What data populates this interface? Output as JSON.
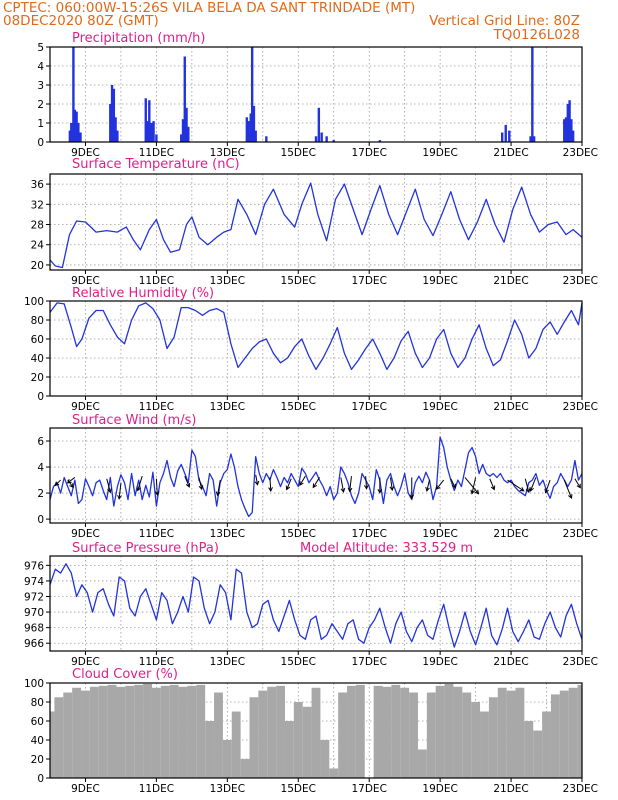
{
  "header": {
    "line1_left": "CPTEC:   060:00W-15:26S  VILA BELA DA SANT TRINDADE (MT)",
    "line2_left": "08DEC2020 80Z (GMT)",
    "line2_right": "Vertical Grid Line: 80Z",
    "line3_right": "TQ0126L028"
  },
  "x_axis": {
    "ticks": [
      "9DEC",
      "11DEC",
      "13DEC",
      "15DEC",
      "17DEC",
      "19DEC",
      "21DEC",
      "23DEC"
    ]
  },
  "colors": {
    "series": "#2233dd",
    "arrows": "#000000",
    "cloud": "#a8a8a8",
    "titles": "#e0208a",
    "header": "#e06a1a"
  },
  "chart_data": [
    {
      "type": "bar",
      "title": "Precipitation (mm/h)",
      "ylim": [
        0,
        5
      ],
      "yticks": [
        0,
        1,
        2,
        3,
        4,
        5
      ],
      "x": [
        8.56,
        8.6,
        8.66,
        8.7,
        8.75,
        8.8,
        8.86,
        9.7,
        9.75,
        9.8,
        9.85,
        9.9,
        10.7,
        10.75,
        10.8,
        10.86,
        10.92,
        11.0,
        11.7,
        11.75,
        11.8,
        11.85,
        11.9,
        13.55,
        13.6,
        13.66,
        13.7,
        13.75,
        13.8,
        14.1,
        15.5,
        15.58,
        15.66,
        15.8,
        16.0,
        17.3,
        20.75,
        20.85,
        20.95,
        21.55,
        21.6,
        21.65,
        22.5,
        22.55,
        22.6,
        22.65,
        22.7,
        22.75
      ],
      "values": [
        0.6,
        1.0,
        5.0,
        1.7,
        1.6,
        1.0,
        0.5,
        2.0,
        3.0,
        2.8,
        1.3,
        0.6,
        2.3,
        1.1,
        2.2,
        1.0,
        1.1,
        0.4,
        0.4,
        1.2,
        4.5,
        1.8,
        0.8,
        1.3,
        1.1,
        1.5,
        5.0,
        1.9,
        0.6,
        0.3,
        0.3,
        1.8,
        0.5,
        0.3,
        0.1,
        0.1,
        0.5,
        0.9,
        0.6,
        0.3,
        5.0,
        0.3,
        1.2,
        1.3,
        2.0,
        2.2,
        1.2,
        0.6
      ]
    },
    {
      "type": "line",
      "title": "Surface Temperature (nC)",
      "ylim": [
        19,
        38
      ],
      "yticks": [
        20,
        24,
        28,
        32,
        36
      ],
      "x": [
        8.0,
        8.15,
        8.35,
        8.55,
        8.75,
        9.0,
        9.3,
        9.6,
        9.9,
        10.15,
        10.35,
        10.55,
        10.8,
        11.0,
        11.2,
        11.4,
        11.65,
        11.85,
        12.0,
        12.2,
        12.45,
        12.7,
        12.9,
        13.1,
        13.3,
        13.55,
        13.8,
        14.05,
        14.3,
        14.6,
        14.9,
        15.1,
        15.35,
        15.55,
        15.8,
        16.05,
        16.3,
        16.55,
        16.8,
        17.05,
        17.3,
        17.55,
        17.8,
        18.05,
        18.3,
        18.55,
        18.8,
        19.05,
        19.3,
        19.55,
        19.8,
        20.05,
        20.3,
        20.55,
        20.8,
        21.05,
        21.3,
        21.55,
        21.8,
        22.05,
        22.3,
        22.55,
        22.75,
        23.0
      ],
      "values": [
        21.0,
        19.8,
        19.5,
        26.0,
        28.7,
        28.5,
        26.5,
        26.8,
        26.5,
        27.5,
        25.0,
        23.0,
        27.0,
        29.0,
        25.0,
        22.5,
        23.0,
        28.0,
        29.5,
        25.5,
        24.0,
        25.5,
        26.5,
        27.0,
        33.0,
        30.0,
        26.0,
        32.0,
        35.0,
        30.0,
        27.5,
        32.0,
        36.2,
        30.0,
        24.8,
        33.0,
        36.0,
        31.0,
        26.0,
        31.0,
        35.7,
        30.0,
        26.0,
        30.5,
        35.0,
        29.0,
        25.8,
        30.0,
        34.5,
        29.0,
        25.0,
        28.5,
        33.0,
        28.0,
        24.5,
        31.0,
        35.4,
        30.0,
        26.5,
        28.0,
        28.5,
        26.0,
        27.0,
        25.5
      ]
    },
    {
      "type": "line",
      "title": "Relative Humidity (%)",
      "ylim": [
        0,
        100
      ],
      "yticks": [
        0,
        20,
        40,
        60,
        80,
        100
      ],
      "x": [
        8.0,
        8.2,
        8.4,
        8.6,
        8.75,
        8.9,
        9.1,
        9.3,
        9.5,
        9.7,
        9.9,
        10.1,
        10.3,
        10.5,
        10.7,
        10.9,
        11.1,
        11.3,
        11.5,
        11.7,
        11.9,
        12.1,
        12.3,
        12.5,
        12.7,
        12.9,
        13.1,
        13.3,
        13.5,
        13.7,
        13.9,
        14.1,
        14.3,
        14.5,
        14.7,
        14.9,
        15.1,
        15.3,
        15.5,
        15.7,
        15.9,
        16.1,
        16.3,
        16.5,
        16.7,
        16.9,
        17.1,
        17.3,
        17.5,
        17.7,
        17.9,
        18.1,
        18.3,
        18.5,
        18.7,
        18.9,
        19.1,
        19.3,
        19.5,
        19.7,
        19.9,
        20.1,
        20.3,
        20.5,
        20.7,
        20.9,
        21.1,
        21.3,
        21.5,
        21.7,
        21.9,
        22.1,
        22.3,
        22.5,
        22.7,
        22.9,
        23.0
      ],
      "values": [
        88.0,
        98.0,
        97.0,
        72.0,
        52.0,
        60.0,
        82.0,
        90.0,
        90.0,
        75.0,
        62.0,
        55.0,
        80.0,
        95.0,
        98.0,
        92.0,
        80.0,
        50.0,
        62.0,
        93.0,
        93.0,
        90.0,
        85.0,
        90.0,
        92.0,
        88.0,
        55.0,
        30.0,
        40.0,
        50.0,
        57.0,
        60.0,
        45.0,
        35.0,
        40.0,
        52.0,
        60.0,
        42.0,
        28.0,
        40.0,
        55.0,
        72.0,
        45.0,
        28.0,
        38.0,
        50.0,
        60.0,
        45.0,
        28.0,
        40.0,
        58.0,
        68.0,
        45.0,
        30.0,
        40.0,
        60.0,
        70.0,
        45.0,
        30.0,
        40.0,
        60.0,
        75.0,
        50.0,
        32.0,
        38.0,
        58.0,
        80.0,
        65.0,
        40.0,
        50.0,
        70.0,
        78.0,
        65.0,
        78.0,
        90.0,
        75.0,
        98.0
      ]
    },
    {
      "type": "line",
      "title": "Surface Wind (m/s)",
      "ylim": [
        -0.3,
        7.0
      ],
      "yticks": [
        0,
        2,
        4,
        6
      ],
      "x": [
        8.0,
        8.1,
        8.2,
        8.3,
        8.4,
        8.5,
        8.6,
        8.7,
        8.8,
        8.9,
        9.0,
        9.1,
        9.2,
        9.3,
        9.4,
        9.5,
        9.6,
        9.7,
        9.8,
        9.9,
        10.0,
        10.1,
        10.2,
        10.3,
        10.4,
        10.5,
        10.6,
        10.7,
        10.8,
        10.9,
        11.0,
        11.1,
        11.2,
        11.3,
        11.4,
        11.5,
        11.6,
        11.7,
        11.8,
        11.9,
        12.0,
        12.1,
        12.2,
        12.3,
        12.4,
        12.5,
        12.6,
        12.7,
        12.8,
        12.9,
        13.0,
        13.1,
        13.2,
        13.3,
        13.4,
        13.5,
        13.6,
        13.7,
        13.8,
        13.9,
        14.0,
        14.1,
        14.2,
        14.3,
        14.4,
        14.5,
        14.6,
        14.7,
        14.8,
        14.9,
        15.0,
        15.1,
        15.2,
        15.3,
        15.4,
        15.5,
        15.6,
        15.7,
        15.8,
        15.9,
        16.0,
        16.1,
        16.2,
        16.3,
        16.4,
        16.5,
        16.6,
        16.7,
        16.8,
        16.9,
        17.0,
        17.1,
        17.2,
        17.3,
        17.4,
        17.5,
        17.6,
        17.7,
        17.8,
        17.9,
        18.0,
        18.1,
        18.2,
        18.3,
        18.4,
        18.5,
        18.6,
        18.7,
        18.8,
        18.9,
        19.0,
        19.1,
        19.2,
        19.3,
        19.4,
        19.5,
        19.6,
        19.7,
        19.8,
        19.9,
        20.0,
        20.1,
        20.2,
        20.3,
        20.4,
        20.5,
        20.6,
        20.7,
        20.8,
        20.9,
        21.0,
        21.1,
        21.2,
        21.3,
        21.4,
        21.5,
        21.6,
        21.7,
        21.8,
        21.9,
        22.0,
        22.1,
        22.2,
        22.3,
        22.4,
        22.5,
        22.6,
        22.7,
        22.8,
        22.9,
        23.0
      ],
      "values": [
        1.5,
        2.5,
        2.8,
        2.0,
        3.2,
        2.5,
        1.8,
        3.0,
        1.2,
        1.5,
        3.1,
        2.5,
        1.8,
        2.8,
        3.0,
        2.2,
        1.5,
        3.2,
        1.0,
        2.5,
        3.4,
        2.8,
        1.5,
        3.5,
        1.8,
        3.0,
        1.5,
        2.6,
        1.7,
        3.6,
        1.0,
        2.8,
        3.5,
        4.5,
        3.2,
        2.5,
        3.7,
        4.2,
        3.5,
        2.8,
        5.3,
        4.8,
        3.0,
        2.5,
        1.8,
        3.5,
        3.0,
        1.0,
        2.8,
        3.5,
        3.8,
        5.0,
        4.0,
        2.5,
        1.5,
        0.8,
        0.2,
        0.5,
        4.8,
        3.5,
        2.8,
        3.5,
        3.0,
        3.8,
        3.2,
        2.5,
        3.2,
        2.8,
        3.5,
        3.0,
        2.5,
        3.9,
        3.5,
        2.8,
        3.2,
        3.6,
        3.0,
        2.5,
        1.8,
        2.5,
        1.5,
        2.0,
        4.0,
        3.5,
        2.8,
        1.8,
        1.2,
        2.0,
        3.5,
        3.0,
        2.5,
        1.5,
        3.8,
        3.0,
        1.2,
        3.0,
        3.5,
        2.5,
        1.8,
        2.5,
        3.5,
        2.0,
        1.5,
        2.8,
        3.3,
        2.8,
        3.6,
        3.0,
        1.5,
        2.5,
        6.3,
        5.5,
        4.0,
        3.0,
        2.2,
        3.0,
        2.5,
        3.8,
        5.1,
        5.5,
        4.8,
        3.5,
        4.2,
        3.5,
        3.3,
        3.5,
        3.2,
        3.5,
        3.0,
        2.8,
        3.0,
        2.5,
        2.2,
        2.0,
        1.8,
        2.8,
        3.0,
        3.5,
        2.6,
        3.0,
        2.2,
        1.6,
        2.5,
        2.8,
        3.5,
        3.0,
        2.5,
        3.0,
        4.5,
        3.0,
        3.5
      ]
    },
    {
      "type": "line",
      "title": "Surface Pressure (hPa)",
      "annotation": "Model Altitude: 333.529  m",
      "ylim": [
        965.0,
        977.2
      ],
      "yticks": [
        966,
        968,
        970,
        972,
        974,
        976
      ],
      "x": [
        8.0,
        8.15,
        8.3,
        8.45,
        8.6,
        8.75,
        8.9,
        9.05,
        9.2,
        9.35,
        9.5,
        9.65,
        9.8,
        9.95,
        10.1,
        10.25,
        10.4,
        10.55,
        10.7,
        10.85,
        11.0,
        11.15,
        11.3,
        11.45,
        11.6,
        11.75,
        11.9,
        12.05,
        12.2,
        12.35,
        12.5,
        12.65,
        12.8,
        12.95,
        13.1,
        13.25,
        13.4,
        13.55,
        13.7,
        13.85,
        14.0,
        14.15,
        14.3,
        14.45,
        14.6,
        14.75,
        14.9,
        15.05,
        15.2,
        15.35,
        15.5,
        15.65,
        15.8,
        15.95,
        16.1,
        16.25,
        16.4,
        16.55,
        16.7,
        16.85,
        17.0,
        17.15,
        17.3,
        17.45,
        17.6,
        17.75,
        17.9,
        18.05,
        18.2,
        18.35,
        18.5,
        18.65,
        18.8,
        18.95,
        19.1,
        19.25,
        19.4,
        19.55,
        19.7,
        19.85,
        20.0,
        20.15,
        20.3,
        20.45,
        20.6,
        20.75,
        20.9,
        21.05,
        21.2,
        21.35,
        21.5,
        21.65,
        21.8,
        21.95,
        22.1,
        22.25,
        22.4,
        22.55,
        22.7,
        22.85,
        23.0
      ],
      "values": [
        973.5,
        975.5,
        975.0,
        976.2,
        975.0,
        972.0,
        973.5,
        972.5,
        970.0,
        972.5,
        973.0,
        971.0,
        969.5,
        974.5,
        974.0,
        970.5,
        969.5,
        972.0,
        973.0,
        971.0,
        969.0,
        972.5,
        971.5,
        968.5,
        970.0,
        972.0,
        970.0,
        974.5,
        974.0,
        970.5,
        968.5,
        970.0,
        973.5,
        972.5,
        969.0,
        975.5,
        975.0,
        970.0,
        968.0,
        968.5,
        971.0,
        971.5,
        969.0,
        967.5,
        969.5,
        971.5,
        969.0,
        967.0,
        966.5,
        969.0,
        969.5,
        966.5,
        967.0,
        968.5,
        967.5,
        966.5,
        968.5,
        969.0,
        966.5,
        966.0,
        968.0,
        969.0,
        970.5,
        968.0,
        966.0,
        968.5,
        970.0,
        967.5,
        966.2,
        968.0,
        969.0,
        967.0,
        966.5,
        969.0,
        971.0,
        968.0,
        965.5,
        967.5,
        970.0,
        967.5,
        965.8,
        968.0,
        970.5,
        967.0,
        965.8,
        967.8,
        970.5,
        967.5,
        966.2,
        967.5,
        969.0,
        966.8,
        966.5,
        968.5,
        970.0,
        968.0,
        966.8,
        969.5,
        971.0,
        968.5,
        966.5
      ]
    },
    {
      "type": "bar",
      "title": "Cloud Cover (%)",
      "ylim": [
        0,
        100
      ],
      "yticks": [
        0,
        20,
        40,
        60,
        80,
        100
      ],
      "x": [
        8.0,
        8.25,
        8.5,
        8.75,
        9.0,
        9.25,
        9.5,
        9.75,
        10.0,
        10.25,
        10.5,
        10.75,
        11.0,
        11.25,
        11.5,
        11.75,
        12.0,
        12.25,
        12.5,
        12.75,
        13.0,
        13.25,
        13.5,
        13.75,
        14.0,
        14.25,
        14.5,
        14.75,
        15.0,
        15.25,
        15.5,
        15.75,
        16.0,
        16.25,
        16.5,
        16.75,
        17.0,
        17.25,
        17.5,
        17.75,
        18.0,
        18.25,
        18.5,
        18.75,
        19.0,
        19.25,
        19.5,
        19.75,
        20.0,
        20.25,
        20.5,
        20.75,
        21.0,
        21.25,
        21.5,
        21.75,
        22.0,
        22.25,
        22.5,
        22.75,
        23.0
      ],
      "values": [
        70,
        85,
        90,
        95,
        92,
        96,
        97,
        98,
        96,
        97,
        98,
        99,
        95,
        97,
        98,
        96,
        97,
        98,
        60,
        90,
        40,
        70,
        20,
        85,
        92,
        96,
        97,
        60,
        80,
        75,
        95,
        40,
        10,
        90,
        97,
        98,
        0,
        97,
        96,
        98,
        95,
        90,
        30,
        90,
        97,
        99,
        96,
        90,
        80,
        70,
        85,
        95,
        92,
        95,
        60,
        50,
        70,
        88,
        92,
        95,
        98
      ]
    }
  ],
  "panel_titles": {
    "p0": "Precipitation (mm/h)",
    "p1": "Surface Temperature (nC)",
    "p2": "Relative Humidity (%)",
    "p3": "Surface Wind (m/s)",
    "p4": "Surface Pressure (hPa)",
    "p4_annot": "Model Altitude: 333.529  m",
    "p5": "Cloud Cover (%)"
  },
  "wind_arrows": {
    "x": [
      8.3,
      8.5,
      8.7,
      9.6,
      10.0,
      10.6,
      11.0,
      11.8,
      12.2,
      12.8,
      13.8,
      14.2,
      14.8,
      15.2,
      15.6,
      16.2,
      16.5,
      16.9,
      17.3,
      17.6,
      18.2,
      18.7,
      19.1,
      19.3,
      19.7,
      20.0,
      20.4,
      20.9,
      21.4,
      21.7,
      22.1,
      22.5,
      22.8
    ],
    "y": [
      3.0,
      3.0,
      3.2,
      3.1,
      2.8,
      3.3,
      3.1,
      3.3,
      3.2,
      3.0,
      3.4,
      3.2,
      3.1,
      3.3,
      3.2,
      3.2,
      3.3,
      3.3,
      3.2,
      3.2,
      3.2,
      3.0,
      3.0,
      3.1,
      3.2,
      3.2,
      3.1,
      3.0,
      3.1,
      3.2,
      3.0,
      3.0,
      3.1
    ],
    "u": [
      -0.6,
      0.6,
      -0.8,
      0.4,
      -0.2,
      -0.5,
      0.1,
      0.5,
      0.3,
      -0.3,
      0.2,
      0.1,
      -0.5,
      -0.6,
      -0.7,
      0.3,
      -0.2,
      0.1,
      0.0,
      0.2,
      0.0,
      -0.3,
      -0.8,
      0.5,
      1.5,
      -0.4,
      0.5,
      1.8,
      0.4,
      -0.6,
      -0.5,
      0.8,
      0.6
    ],
    "v": [
      -0.6,
      -0.8,
      -0.6,
      -1.5,
      -1.8,
      -1.6,
      -1.8,
      -1.2,
      -1.3,
      -1.7,
      -1.1,
      -1.5,
      -1.2,
      -1.0,
      -1.1,
      -1.6,
      -1.7,
      -1.4,
      -1.7,
      -1.4,
      -2.3,
      -1.2,
      -1.0,
      -1.0,
      -1.8,
      -1.8,
      -1.2,
      -1.2,
      -1.5,
      -1.5,
      -1.4,
      -2.0,
      -1.0
    ]
  }
}
